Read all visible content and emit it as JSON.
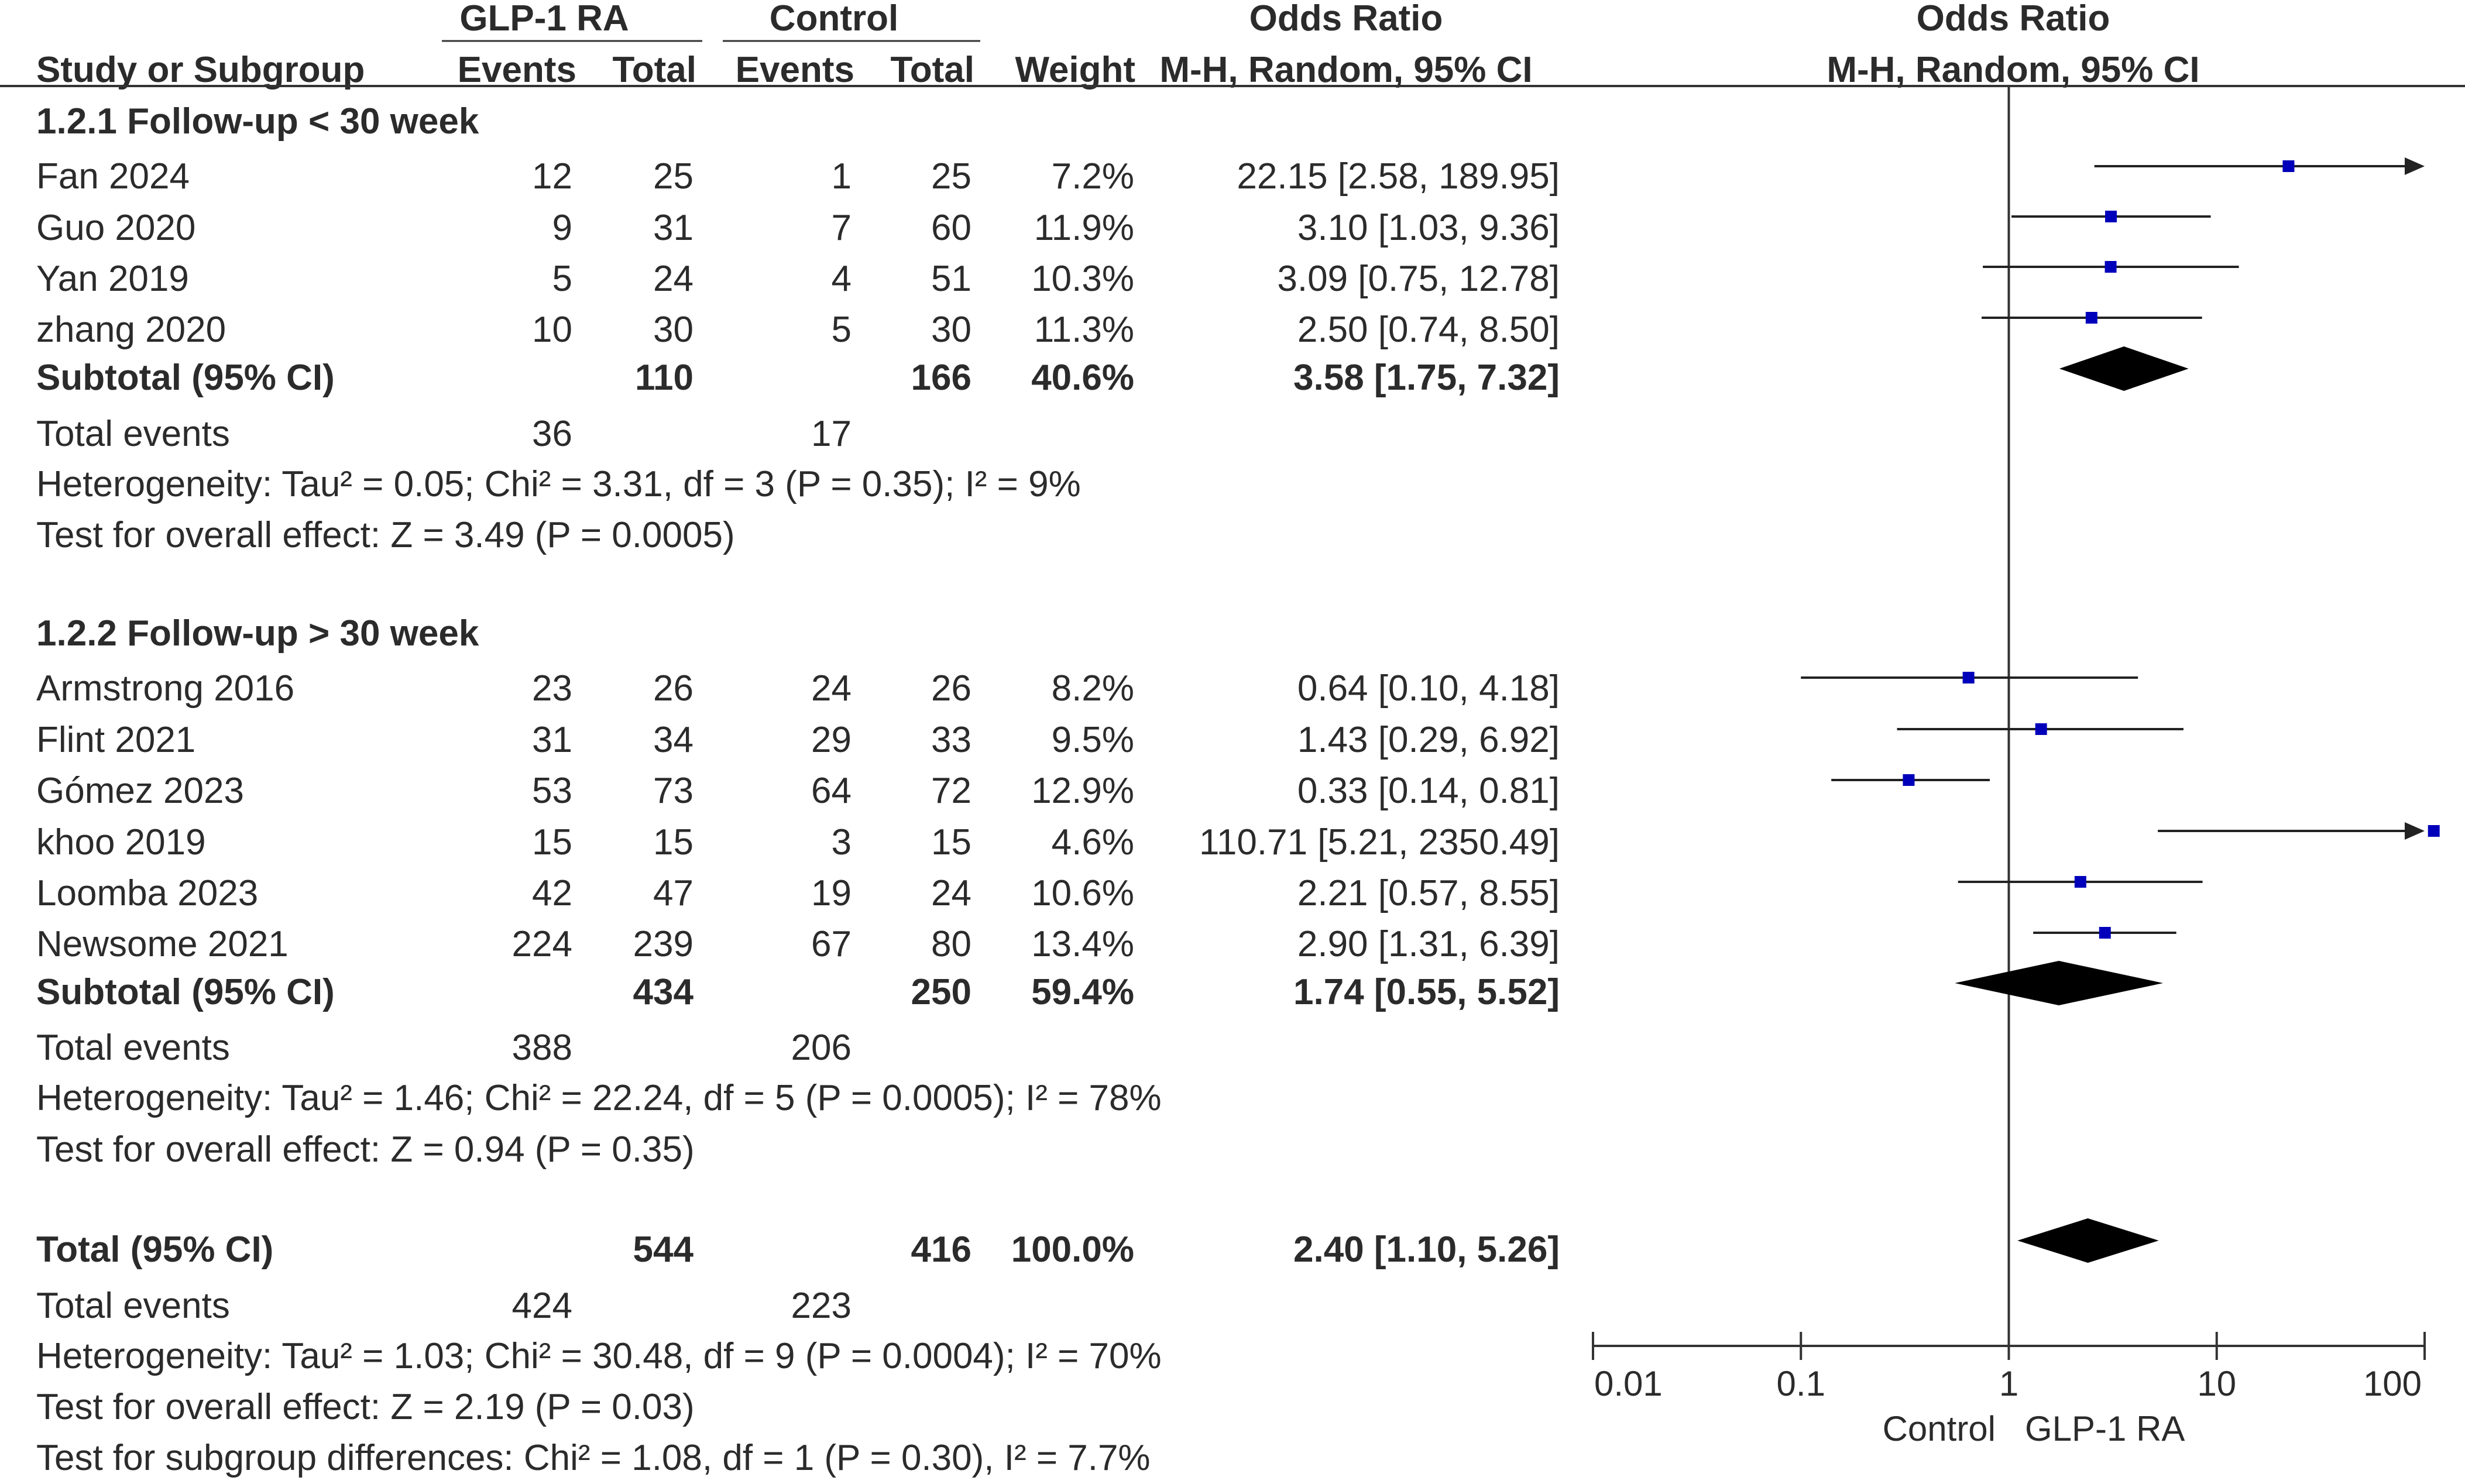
{
  "headers": {
    "group1": "GLP-1 RA",
    "group2": "Control",
    "or_text": "Odds Ratio",
    "or_plot": "Odds Ratio",
    "study": "Study or Subgroup",
    "events1": "Events",
    "total1": "Total",
    "events2": "Events",
    "total2": "Total",
    "weight": "Weight",
    "method_text": "M-H, Random, 95% CI",
    "method_plot": "M-H, Random, 95% CI"
  },
  "axis": {
    "ticks": [
      "0.01",
      "0.1",
      "1",
      "10",
      "100"
    ],
    "favours_left": "Control",
    "favours_right": "GLP-1 RA"
  },
  "chart_data": {
    "type": "forest",
    "xscale": "log",
    "xlim": [
      0.01,
      100
    ],
    "reference_line": 1,
    "marker_color": "#0000bb",
    "groups": [
      {
        "title": "1.2.1 Follow-up < 30 week",
        "studies": [
          {
            "name": "Fan 2024",
            "e1": "12",
            "t1": "25",
            "e2": "1",
            "t2": "25",
            "weight": "7.2%",
            "ci_text": "22.15 [2.58, 189.95]",
            "or": 22.15,
            "lo": 2.58,
            "hi": 189.95
          },
          {
            "name": "Guo 2020",
            "e1": "9",
            "t1": "31",
            "e2": "7",
            "t2": "60",
            "weight": "11.9%",
            "ci_text": "3.10 [1.03, 9.36]",
            "or": 3.1,
            "lo": 1.03,
            "hi": 9.36
          },
          {
            "name": "Yan 2019",
            "e1": "5",
            "t1": "24",
            "e2": "4",
            "t2": "51",
            "weight": "10.3%",
            "ci_text": "3.09 [0.75, 12.78]",
            "or": 3.09,
            "lo": 0.75,
            "hi": 12.78
          },
          {
            "name": "zhang 2020",
            "e1": "10",
            "t1": "30",
            "e2": "5",
            "t2": "30",
            "weight": "11.3%",
            "ci_text": "2.50 [0.74, 8.50]",
            "or": 2.5,
            "lo": 0.74,
            "hi": 8.5
          }
        ],
        "subtotal": {
          "label": "Subtotal (95% CI)",
          "t1": "110",
          "t2": "166",
          "weight": "40.6%",
          "ci_text": "3.58 [1.75, 7.32]",
          "or": 3.58,
          "lo": 1.75,
          "hi": 7.32
        },
        "total_events": {
          "label": "Total events",
          "e1": "36",
          "e2": "17"
        },
        "heterogeneity": "Heterogeneity: Tau² = 0.05; Chi² = 3.31, df = 3 (P = 0.35); I² = 9%",
        "overall": "Test for overall effect: Z = 3.49 (P = 0.0005)"
      },
      {
        "title": "1.2.2 Follow-up > 30 week",
        "studies": [
          {
            "name": "Armstrong 2016",
            "e1": "23",
            "t1": "26",
            "e2": "24",
            "t2": "26",
            "weight": "8.2%",
            "ci_text": "0.64 [0.10, 4.18]",
            "or": 0.64,
            "lo": 0.1,
            "hi": 4.18
          },
          {
            "name": "Flint 2021",
            "e1": "31",
            "t1": "34",
            "e2": "29",
            "t2": "33",
            "weight": "9.5%",
            "ci_text": "1.43 [0.29, 6.92]",
            "or": 1.43,
            "lo": 0.29,
            "hi": 6.92
          },
          {
            "name": "Gómez 2023",
            "e1": "53",
            "t1": "73",
            "e2": "64",
            "t2": "72",
            "weight": "12.9%",
            "ci_text": "0.33 [0.14, 0.81]",
            "or": 0.33,
            "lo": 0.14,
            "hi": 0.81
          },
          {
            "name": "khoo 2019",
            "e1": "15",
            "t1": "15",
            "e2": "3",
            "t2": "15",
            "weight": "4.6%",
            "ci_text": "110.71 [5.21, 2350.49]",
            "or": 110.71,
            "lo": 5.21,
            "hi": 2350.49
          },
          {
            "name": "Loomba 2023",
            "e1": "42",
            "t1": "47",
            "e2": "19",
            "t2": "24",
            "weight": "10.6%",
            "ci_text": "2.21 [0.57, 8.55]",
            "or": 2.21,
            "lo": 0.57,
            "hi": 8.55
          },
          {
            "name": "Newsome 2021",
            "e1": "224",
            "t1": "239",
            "e2": "67",
            "t2": "80",
            "weight": "13.4%",
            "ci_text": "2.90 [1.31, 6.39]",
            "or": 2.9,
            "lo": 1.31,
            "hi": 6.39
          }
        ],
        "subtotal": {
          "label": "Subtotal (95% CI)",
          "t1": "434",
          "t2": "250",
          "weight": "59.4%",
          "ci_text": "1.74 [0.55, 5.52]",
          "or": 1.74,
          "lo": 0.55,
          "hi": 5.52
        },
        "total_events": {
          "label": "Total events",
          "e1": "388",
          "e2": "206"
        },
        "heterogeneity": "Heterogeneity: Tau² = 1.46; Chi² = 22.24, df = 5 (P = 0.0005); I² = 78%",
        "overall": "Test for overall effect: Z = 0.94 (P = 0.35)"
      }
    ],
    "total": {
      "label": "Total (95% CI)",
      "t1": "544",
      "t2": "416",
      "weight": "100.0%",
      "ci_text": "2.40 [1.10, 5.26]",
      "or": 2.4,
      "lo": 1.1,
      "hi": 5.26,
      "total_events": {
        "label": "Total events",
        "e1": "424",
        "e2": "223"
      },
      "heterogeneity": "Heterogeneity: Tau² = 1.03; Chi² = 30.48, df = 9 (P = 0.0004); I² = 70%",
      "overall": "Test for overall effect: Z = 2.19 (P = 0.03)",
      "subgroup_diff": "Test for subgroup differences: Chi² = 1.08, df = 1 (P = 0.30), I² = 7.7%"
    }
  }
}
